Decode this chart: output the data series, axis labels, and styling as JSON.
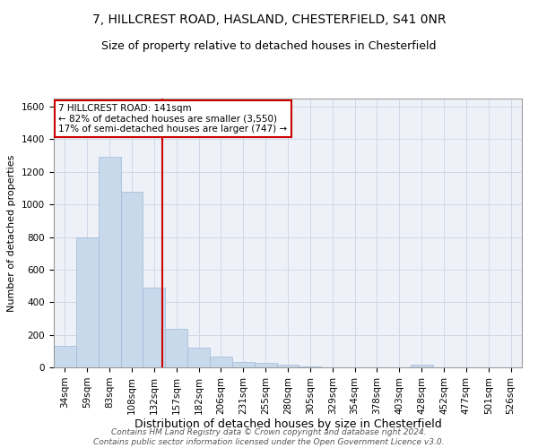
{
  "title1": "7, HILLCREST ROAD, HASLAND, CHESTERFIELD, S41 0NR",
  "title2": "Size of property relative to detached houses in Chesterfield",
  "xlabel": "Distribution of detached houses by size in Chesterfield",
  "ylabel": "Number of detached properties",
  "bin_labels": [
    "34sqm",
    "59sqm",
    "83sqm",
    "108sqm",
    "132sqm",
    "157sqm",
    "182sqm",
    "206sqm",
    "231sqm",
    "255sqm",
    "280sqm",
    "305sqm",
    "329sqm",
    "354sqm",
    "378sqm",
    "403sqm",
    "428sqm",
    "452sqm",
    "477sqm",
    "501sqm",
    "526sqm"
  ],
  "bar_heights": [
    130,
    800,
    1290,
    1080,
    490,
    235,
    120,
    65,
    35,
    25,
    15,
    5,
    0,
    0,
    0,
    0,
    15,
    0,
    0,
    0,
    0
  ],
  "bar_color": "#c9d9ec",
  "bar_edge_color": "#a0b8d8",
  "bar_width": 1.0,
  "ylim": [
    0,
    1650
  ],
  "yticks": [
    0,
    200,
    400,
    600,
    800,
    1000,
    1200,
    1400,
    1600
  ],
  "vline_x": 4.36,
  "vline_color": "#cc0000",
  "annotation_text": "7 HILLCREST ROAD: 141sqm\n← 82% of detached houses are smaller (3,550)\n17% of semi-detached houses are larger (747) →",
  "annotation_box_color": "white",
  "annotation_box_edge_color": "#cc0000",
  "grid_color": "#d0d8e8",
  "background_color": "#eef2f8",
  "footnote": "Contains HM Land Registry data © Crown copyright and database right 2024.\nContains public sector information licensed under the Open Government Licence v3.0.",
  "title1_fontsize": 10,
  "title2_fontsize": 9,
  "xlabel_fontsize": 9,
  "ylabel_fontsize": 8,
  "tick_fontsize": 7.5,
  "annotation_fontsize": 7.5,
  "footnote_fontsize": 6.5
}
